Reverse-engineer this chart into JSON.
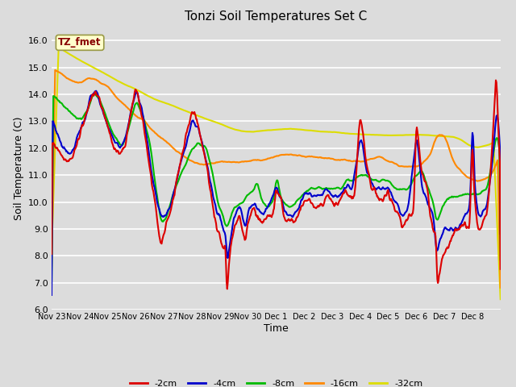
{
  "title": "Tonzi Soil Temperatures Set C",
  "xlabel": "Time",
  "ylabel": "Soil Temperature (C)",
  "ylim": [
    6.0,
    16.5
  ],
  "yticks": [
    6.0,
    7.0,
    8.0,
    9.0,
    10.0,
    11.0,
    12.0,
    13.0,
    14.0,
    15.0,
    16.0
  ],
  "series_labels": [
    "-2cm",
    "-4cm",
    "-8cm",
    "-16cm",
    "-32cm"
  ],
  "series_colors": [
    "#dd0000",
    "#0000cc",
    "#00bb00",
    "#ff8800",
    "#dddd00"
  ],
  "annotation_text": "TZ_fmet",
  "annotation_bg": "#ffffcc",
  "annotation_border": "#999944",
  "annotation_text_color": "#880000",
  "background_color": "#dcdcdc",
  "grid_color": "#ffffff",
  "xtick_labels": [
    "Nov 23",
    "Nov 24",
    "Nov 25",
    "Nov 26",
    "Nov 27",
    "Nov 28",
    "Nov 29",
    "Nov 30",
    "Dec 1",
    "Dec 2",
    "Dec 3",
    "Dec 4",
    "Dec 5",
    "Dec 6",
    "Dec 7",
    "Dec 8"
  ],
  "n_days": 16,
  "points_per_day": 48
}
